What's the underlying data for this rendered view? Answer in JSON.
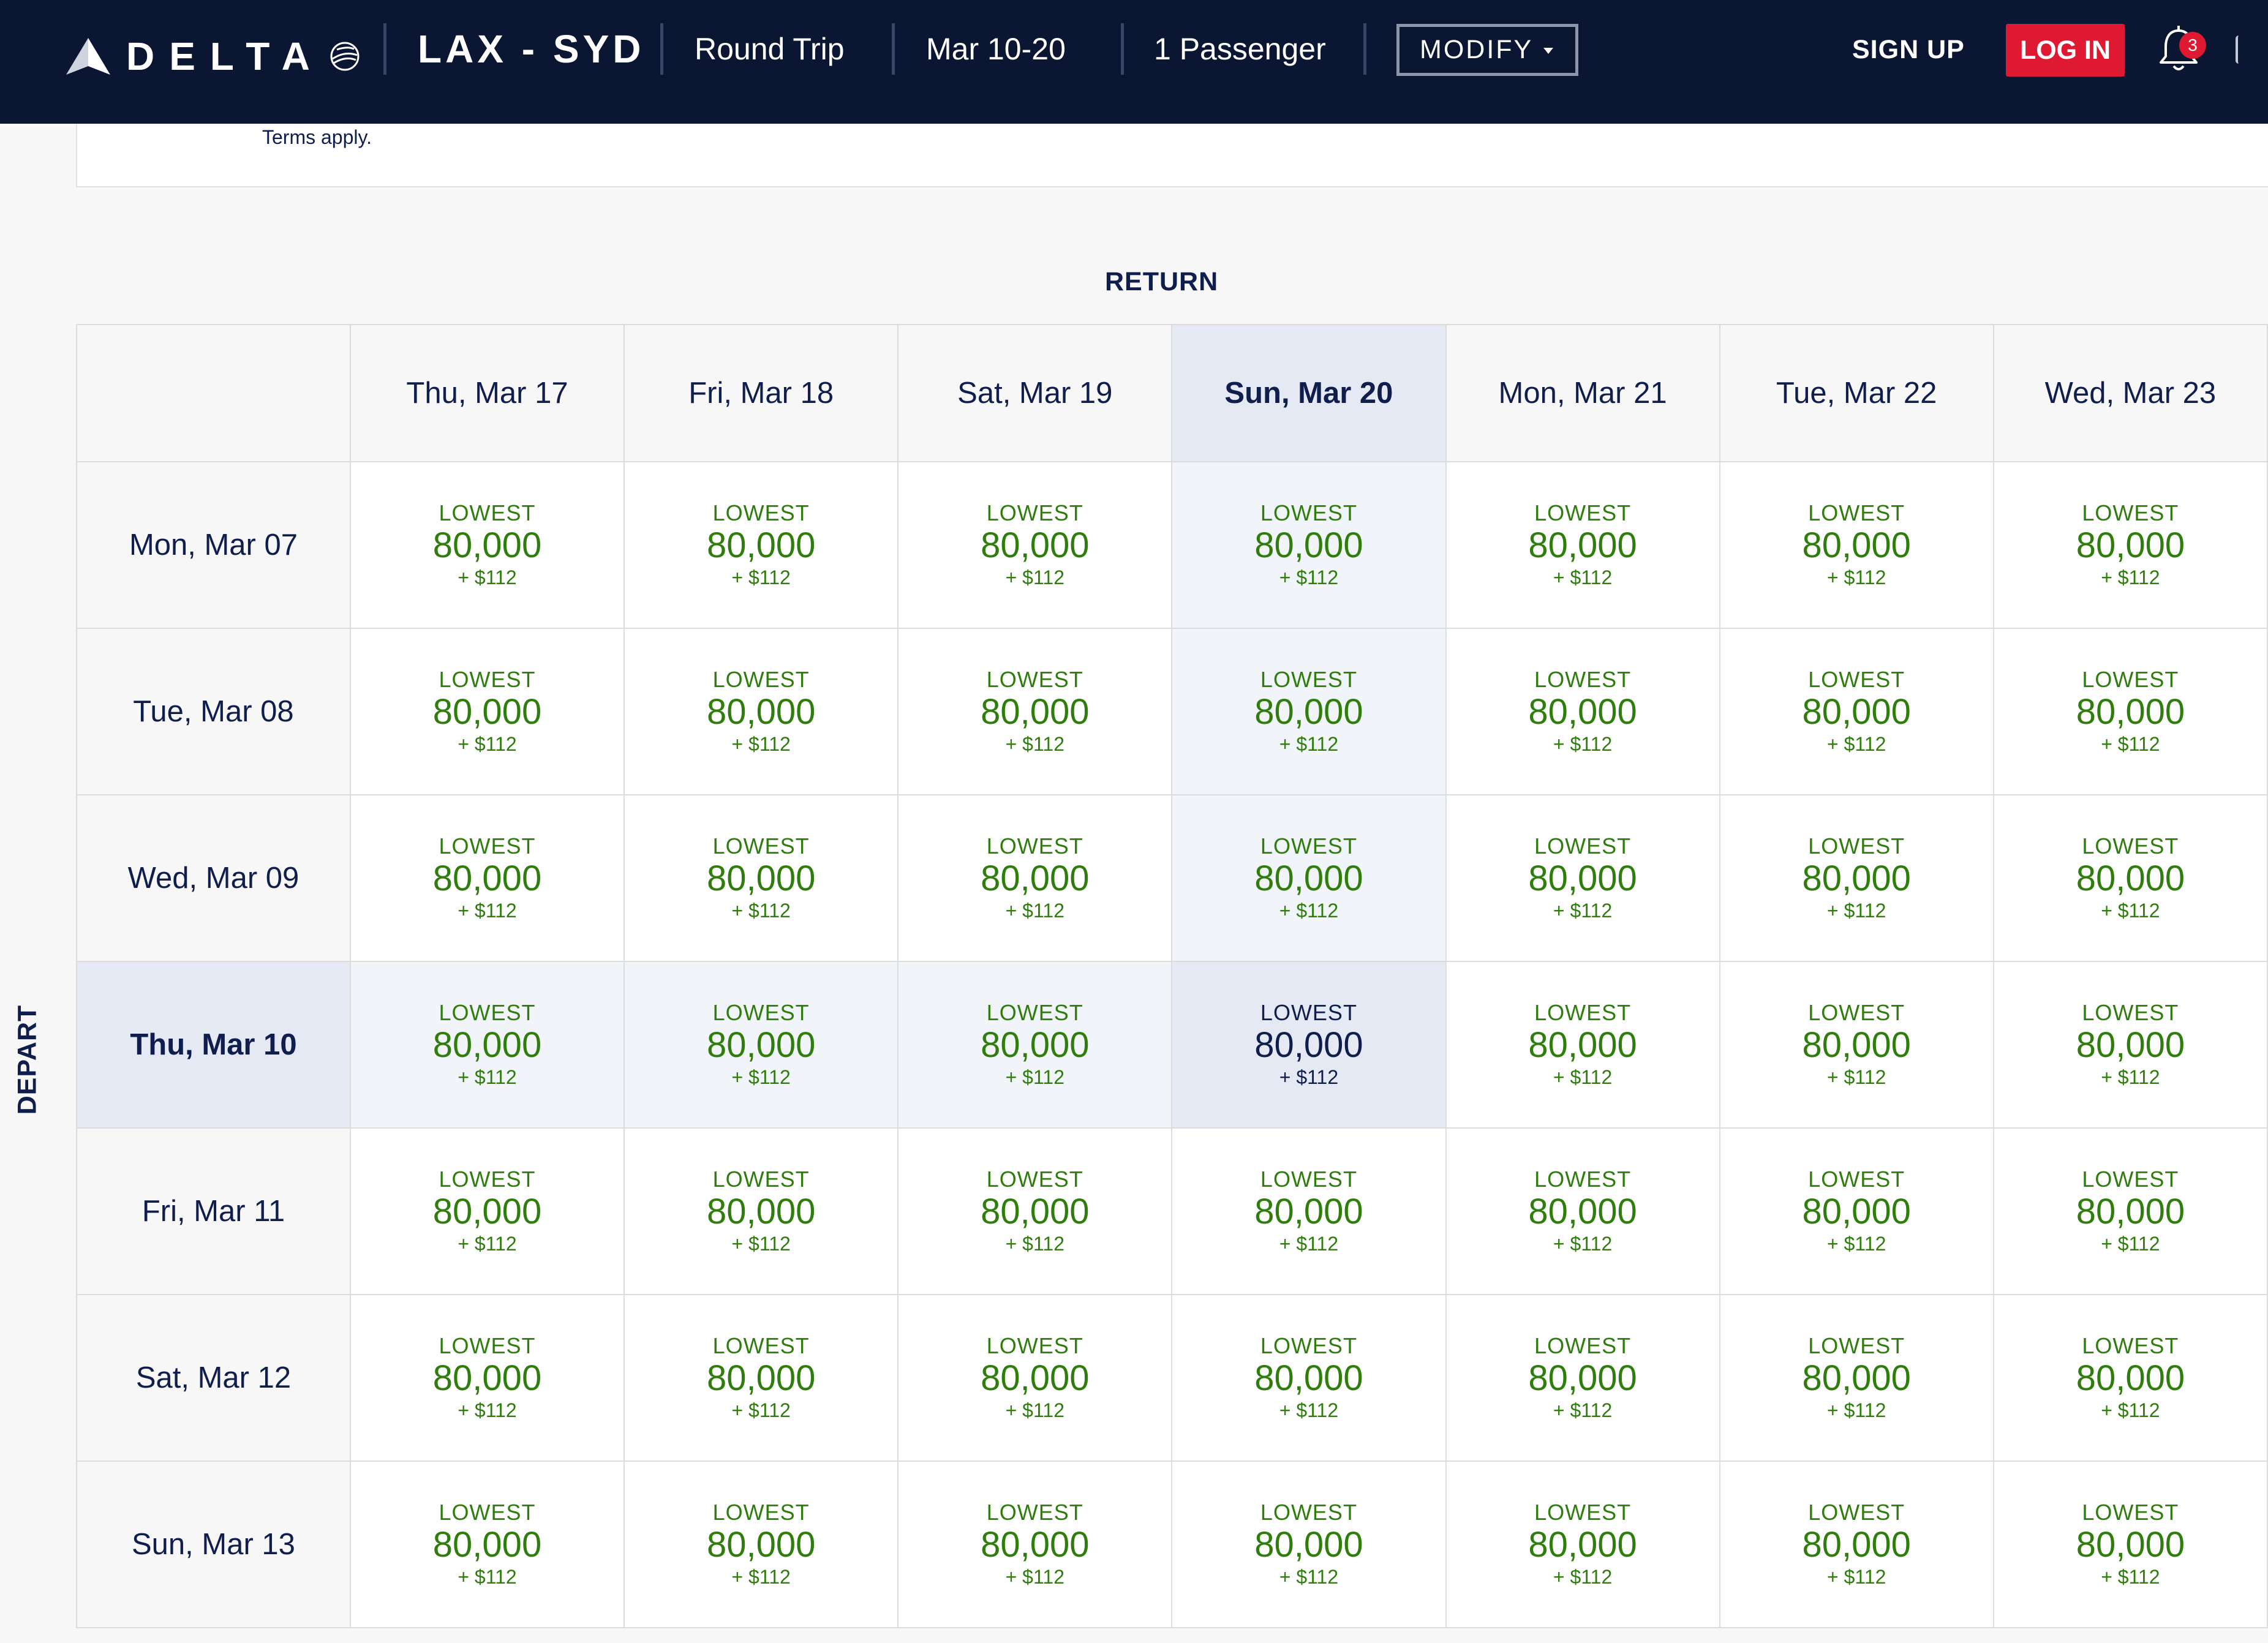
{
  "brand": {
    "name": "DELTA",
    "accent": "#e01933",
    "navy": "#0b1633",
    "fare_green": "#2f7d0c"
  },
  "header": {
    "route": "LAX - SYD",
    "trip_type": "Round Trip",
    "dates": "Mar 10-20",
    "passengers": "1 Passenger",
    "modify_label": "MODIFY",
    "signup_label": "SIGN UP",
    "login_label": "LOG IN",
    "notification_count": "3"
  },
  "terms_text": "Terms apply.",
  "grid": {
    "return_label": "RETURN",
    "depart_label": "DEPART",
    "return_dates": [
      "Thu, Mar 17",
      "Fri, Mar 18",
      "Sat, Mar 19",
      "Sun, Mar 20",
      "Mon, Mar 21",
      "Tue, Mar 22",
      "Wed, Mar 23"
    ],
    "selected_return_index": 3,
    "depart_dates": [
      "Mon, Mar 07",
      "Tue, Mar 08",
      "Wed, Mar 09",
      "Thu, Mar 10",
      "Fri, Mar 11",
      "Sat, Mar 12",
      "Sun, Mar 13"
    ],
    "selected_depart_index": 3,
    "cells": [
      [
        {
          "label": "LOWEST",
          "miles": "80,000",
          "tax": "+ $112"
        },
        {
          "label": "LOWEST",
          "miles": "80,000",
          "tax": "+ $112"
        },
        {
          "label": "LOWEST",
          "miles": "80,000",
          "tax": "+ $112"
        },
        {
          "label": "LOWEST",
          "miles": "80,000",
          "tax": "+ $112"
        },
        {
          "label": "LOWEST",
          "miles": "80,000",
          "tax": "+ $112"
        },
        {
          "label": "LOWEST",
          "miles": "80,000",
          "tax": "+ $112"
        },
        {
          "label": "LOWEST",
          "miles": "80,000",
          "tax": "+ $112"
        }
      ],
      [
        {
          "label": "LOWEST",
          "miles": "80,000",
          "tax": "+ $112"
        },
        {
          "label": "LOWEST",
          "miles": "80,000",
          "tax": "+ $112"
        },
        {
          "label": "LOWEST",
          "miles": "80,000",
          "tax": "+ $112"
        },
        {
          "label": "LOWEST",
          "miles": "80,000",
          "tax": "+ $112"
        },
        {
          "label": "LOWEST",
          "miles": "80,000",
          "tax": "+ $112"
        },
        {
          "label": "LOWEST",
          "miles": "80,000",
          "tax": "+ $112"
        },
        {
          "label": "LOWEST",
          "miles": "80,000",
          "tax": "+ $112"
        }
      ],
      [
        {
          "label": "LOWEST",
          "miles": "80,000",
          "tax": "+ $112"
        },
        {
          "label": "LOWEST",
          "miles": "80,000",
          "tax": "+ $112"
        },
        {
          "label": "LOWEST",
          "miles": "80,000",
          "tax": "+ $112"
        },
        {
          "label": "LOWEST",
          "miles": "80,000",
          "tax": "+ $112"
        },
        {
          "label": "LOWEST",
          "miles": "80,000",
          "tax": "+ $112"
        },
        {
          "label": "LOWEST",
          "miles": "80,000",
          "tax": "+ $112"
        },
        {
          "label": "LOWEST",
          "miles": "80,000",
          "tax": "+ $112"
        }
      ],
      [
        {
          "label": "LOWEST",
          "miles": "80,000",
          "tax": "+ $112"
        },
        {
          "label": "LOWEST",
          "miles": "80,000",
          "tax": "+ $112"
        },
        {
          "label": "LOWEST",
          "miles": "80,000",
          "tax": "+ $112"
        },
        {
          "label": "LOWEST",
          "miles": "80,000",
          "tax": "+ $112"
        },
        {
          "label": "LOWEST",
          "miles": "80,000",
          "tax": "+ $112"
        },
        {
          "label": "LOWEST",
          "miles": "80,000",
          "tax": "+ $112"
        },
        {
          "label": "LOWEST",
          "miles": "80,000",
          "tax": "+ $112"
        }
      ],
      [
        {
          "label": "LOWEST",
          "miles": "80,000",
          "tax": "+ $112"
        },
        {
          "label": "LOWEST",
          "miles": "80,000",
          "tax": "+ $112"
        },
        {
          "label": "LOWEST",
          "miles": "80,000",
          "tax": "+ $112"
        },
        {
          "label": "LOWEST",
          "miles": "80,000",
          "tax": "+ $112"
        },
        {
          "label": "LOWEST",
          "miles": "80,000",
          "tax": "+ $112"
        },
        {
          "label": "LOWEST",
          "miles": "80,000",
          "tax": "+ $112"
        },
        {
          "label": "LOWEST",
          "miles": "80,000",
          "tax": "+ $112"
        }
      ],
      [
        {
          "label": "LOWEST",
          "miles": "80,000",
          "tax": "+ $112"
        },
        {
          "label": "LOWEST",
          "miles": "80,000",
          "tax": "+ $112"
        },
        {
          "label": "LOWEST",
          "miles": "80,000",
          "tax": "+ $112"
        },
        {
          "label": "LOWEST",
          "miles": "80,000",
          "tax": "+ $112"
        },
        {
          "label": "LOWEST",
          "miles": "80,000",
          "tax": "+ $112"
        },
        {
          "label": "LOWEST",
          "miles": "80,000",
          "tax": "+ $112"
        },
        {
          "label": "LOWEST",
          "miles": "80,000",
          "tax": "+ $112"
        }
      ],
      [
        {
          "label": "LOWEST",
          "miles": "80,000",
          "tax": "+ $112"
        },
        {
          "label": "LOWEST",
          "miles": "80,000",
          "tax": "+ $112"
        },
        {
          "label": "LOWEST",
          "miles": "80,000",
          "tax": "+ $112"
        },
        {
          "label": "LOWEST",
          "miles": "80,000",
          "tax": "+ $112"
        },
        {
          "label": "LOWEST",
          "miles": "80,000",
          "tax": "+ $112"
        },
        {
          "label": "LOWEST",
          "miles": "80,000",
          "tax": "+ $112"
        },
        {
          "label": "LOWEST",
          "miles": "80,000",
          "tax": "+ $112"
        }
      ]
    ]
  },
  "icons": {
    "logo": "delta-widget-logo",
    "skyteam": "skyteam-globe-icon",
    "modify_caret": "caret-down-icon",
    "notifications": "bell-icon"
  }
}
